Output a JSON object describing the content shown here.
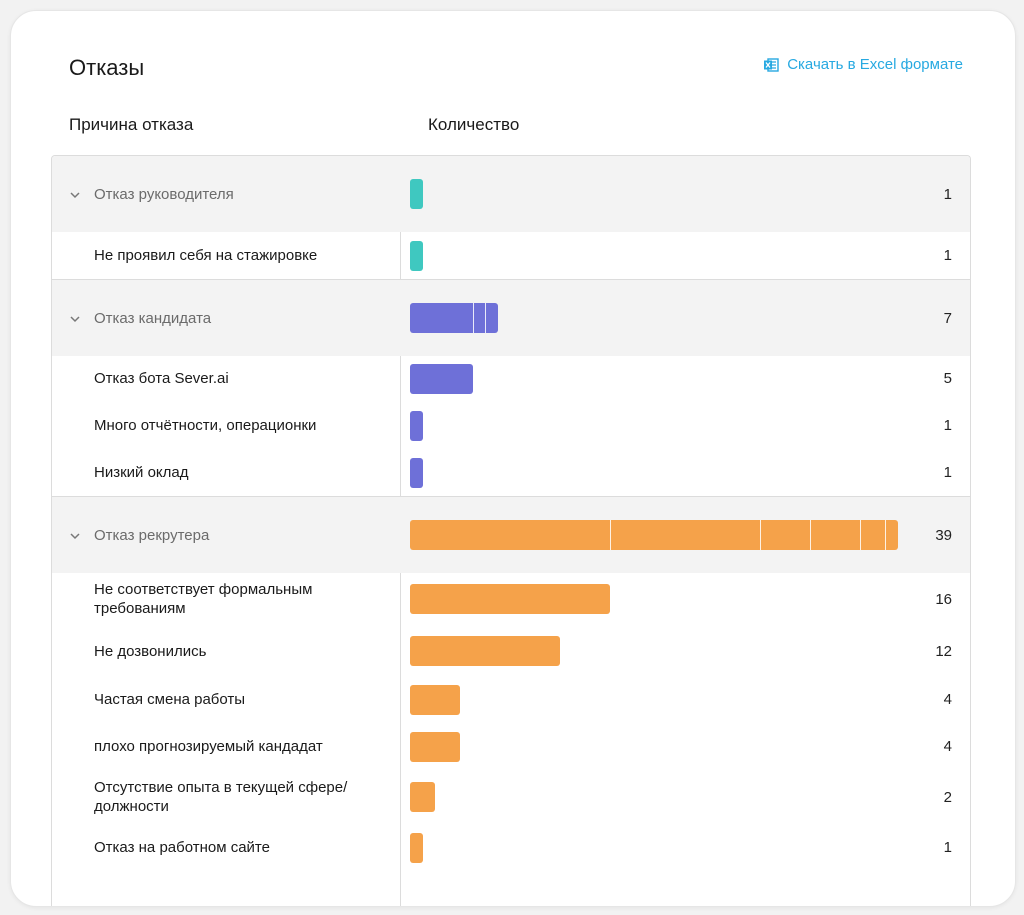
{
  "header": {
    "title": "Отказы",
    "download_label": "Скачать в Excel формате"
  },
  "columns": {
    "reason": "Причина отказа",
    "count": "Количество"
  },
  "colors": {
    "manager": "#3fc8c0",
    "candidate": "#6e70d8",
    "recruiter": "#f5a24a",
    "link": "#27a9e1"
  },
  "max_value": 39,
  "groups": [
    {
      "label": "Отказ руководителя",
      "count": "1",
      "value": 1,
      "color_key": "manager",
      "segments": [
        1
      ],
      "items": [
        {
          "label": "Не проявил себя на стажировке",
          "count": "1",
          "value": 1
        }
      ]
    },
    {
      "label": "Отказ кандидата",
      "count": "7",
      "value": 7,
      "color_key": "candidate",
      "segments": [
        5,
        1,
        1
      ],
      "items": [
        {
          "label": "Отказ бота Sever.ai",
          "count": "5",
          "value": 5
        },
        {
          "label": "Много отчётности, операционки",
          "count": "1",
          "value": 1
        },
        {
          "label": "Низкий оклад",
          "count": "1",
          "value": 1
        }
      ]
    },
    {
      "label": "Отказ рекрутера",
      "count": "39",
      "value": 39,
      "color_key": "recruiter",
      "segments": [
        16,
        12,
        4,
        4,
        2,
        1
      ],
      "items": [
        {
          "label": "Не соответствует формальным требованиям",
          "count": "16",
          "value": 16
        },
        {
          "label": "Не дозвонились",
          "count": "12",
          "value": 12
        },
        {
          "label": "Частая смена работы",
          "count": "4",
          "value": 4
        },
        {
          "label": "плохо прогнозируемый кандадат",
          "count": "4",
          "value": 4
        },
        {
          "label": "Отсутствие опыта в текущей сфере/ должности",
          "count": "2",
          "value": 2
        },
        {
          "label": "Отказ на работном сайте",
          "count": "1",
          "value": 1
        }
      ]
    }
  ]
}
